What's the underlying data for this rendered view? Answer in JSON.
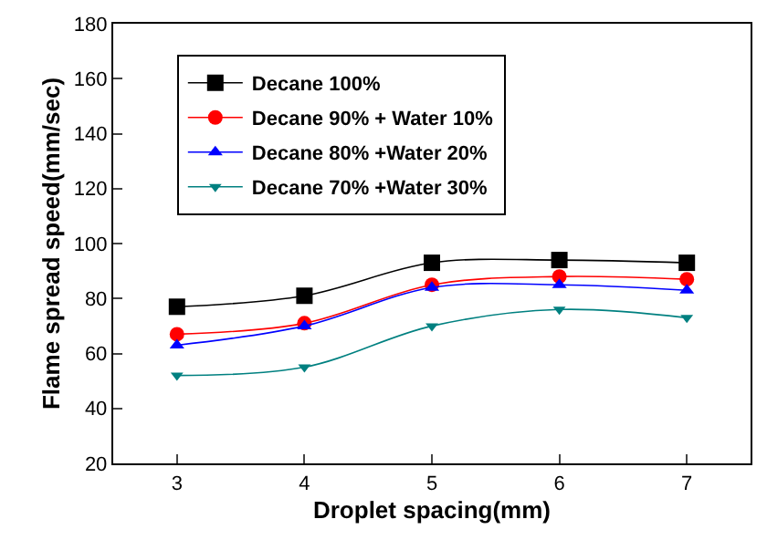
{
  "chart_data": {
    "type": "line",
    "xlabel": "Droplet spacing(mm)",
    "ylabel": "Flame spread speed(mm/sec)",
    "x": [
      3,
      4,
      5,
      6,
      7
    ],
    "xlim": [
      2.5,
      7.5
    ],
    "xticks": [
      3,
      4,
      5,
      6,
      7
    ],
    "ylim": [
      20,
      180
    ],
    "yticks": [
      20,
      40,
      60,
      80,
      100,
      120,
      140,
      160,
      180
    ],
    "legend": "top left",
    "series": [
      {
        "name": "Decane 100%",
        "color": "#000000",
        "marker": "square",
        "values": [
          77,
          81,
          93,
          94,
          93
        ]
      },
      {
        "name": "Decane 90% + Water 10%",
        "color": "#ff0000",
        "marker": "circle",
        "values": [
          67,
          71,
          85,
          88,
          87
        ]
      },
      {
        "name": "Decane 80% +Water 20%",
        "color": "#0000ff",
        "marker": "triangle",
        "values": [
          63,
          70,
          84,
          85,
          83
        ]
      },
      {
        "name": "Decane 70% +Water 30%",
        "color": "#008080",
        "marker": "triangle-down",
        "values": [
          52,
          55,
          70,
          76,
          73
        ]
      }
    ]
  }
}
